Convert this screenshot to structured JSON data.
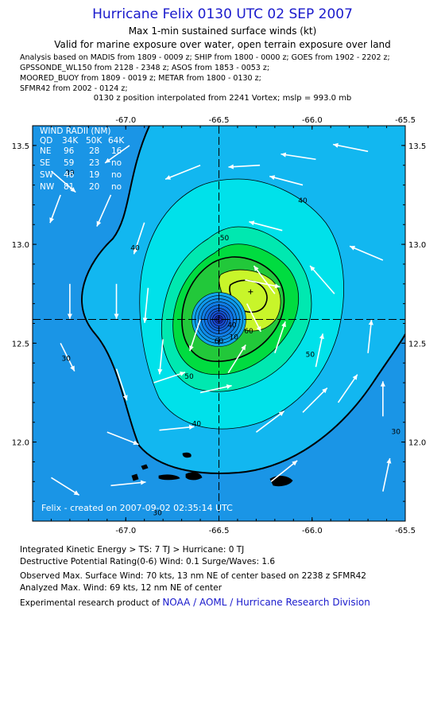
{
  "header": {
    "title": "Hurricane Felix 0130 UTC 02 SEP 2007",
    "subtitle": "Max 1-min sustained surface winds (kt)",
    "validity": "Valid for marine exposure over water, open terrain exposure over land",
    "analysis_lines": [
      "Analysis based on  MADIS from 1809 - 0009 z;  SHIP from 1800 - 0000 z;  GOES from 1902 - 2202 z;",
      "GPSSONDE_WL150 from 2128 - 2348 z;  ASOS from 1853 - 0053 z;",
      "MOORED_BUOY from 1809 - 0019 z;  METAR from 1800 - 0130 z;",
      "SFMR42 from 2002 - 0124 z;"
    ],
    "position_note": "0130 z position interpolated from 2241 Vortex; mslp = 993.0 mb"
  },
  "wind_radii": {
    "title": "WIND RADII (NM)",
    "header": [
      "QD",
      "34K",
      "50K",
      "64K"
    ],
    "rows": [
      [
        "NE",
        "96",
        "28",
        "16"
      ],
      [
        "SE",
        "59",
        "23",
        "no"
      ],
      [
        "SW",
        "46",
        "19",
        "no"
      ],
      [
        "NW",
        "81",
        "20",
        "no"
      ]
    ]
  },
  "credit": "Felix - created on 2007-09-02 02:35:14 UTC",
  "footer": {
    "ike": "Integrated Kinetic Energy > TS: 7 TJ   > Hurricane: 0 TJ",
    "dpr": "Destructive Potential Rating(0-6)   Wind: 0.1 Surge/Waves: 1.6",
    "observed": "Observed Max. Surface Wind: 70 kts, 13 nm NE of center based on 2238 z SFMR42",
    "analyzed": "Analyzed Max. Wind: 69 kts, 12 nm NE of center",
    "product_prefix": "Experimental research product of",
    "product_link": "NOAA / AOML / Hurricane Research Division"
  },
  "chart_data": {
    "type": "heatmap",
    "title": "Hurricane Felix 0130 UTC 02 SEP 2007",
    "xlim": [
      -67.5,
      -65.5
    ],
    "ylim": [
      11.6,
      13.6
    ],
    "x_ticks": [
      -67.0,
      -66.5,
      -66.0,
      -65.5
    ],
    "x_tick_labels": [
      "-67.0",
      "-66.5",
      "-66.0",
      "-65.5"
    ],
    "y_ticks": [
      12.0,
      12.5,
      13.0,
      13.5
    ],
    "y_tick_labels": [
      "12.0",
      "12.5",
      "13.0",
      "13.5"
    ],
    "center": {
      "lon": -66.5,
      "lat": 12.62
    },
    "max_wind_point": {
      "lon": -66.33,
      "lat": 12.76
    },
    "contour_levels": [
      10,
      20,
      30,
      40,
      50,
      60
    ],
    "contour_labels": [
      {
        "text": "30",
        "lon": -67.3,
        "lat": 13.35
      },
      {
        "text": "40",
        "lon": -66.95,
        "lat": 12.97
      },
      {
        "text": "40",
        "lon": -66.05,
        "lat": 13.21
      },
      {
        "text": "40",
        "lon": -66.62,
        "lat": 12.08
      },
      {
        "text": "30",
        "lon": -67.32,
        "lat": 12.41
      },
      {
        "text": "30",
        "lon": -66.83,
        "lat": 11.63
      },
      {
        "text": "30",
        "lon": -65.55,
        "lat": 12.04
      },
      {
        "text": "50",
        "lon": -66.47,
        "lat": 13.02
      },
      {
        "text": "50",
        "lon": -66.66,
        "lat": 12.32
      },
      {
        "text": "60",
        "lon": -66.5,
        "lat": 12.5
      },
      {
        "text": "60",
        "lon": -66.34,
        "lat": 12.55
      },
      {
        "text": "50",
        "lon": -66.01,
        "lat": 12.43
      },
      {
        "text": "10",
        "lon": -66.42,
        "lat": 12.52
      },
      {
        "text": "40",
        "lon": -66.43,
        "lat": 12.58
      }
    ],
    "colors": {
      "band_20": "#1a95e6",
      "band_30": "#12b7f0",
      "band_40": "#00e1ea",
      "band_50": "#00e8b0",
      "band_60": "#00dc40",
      "band_70": "#c8f52a",
      "eye": "#1530cc"
    },
    "wind_barbs": [
      {
        "lon": -67.4,
        "lat": 13.37,
        "u": 0.7,
        "v": -0.6
      },
      {
        "lon": -66.98,
        "lat": 13.5,
        "u": -0.7,
        "v": -0.5
      },
      {
        "lon": -66.6,
        "lat": 13.4,
        "u": -1.0,
        "v": -0.4
      },
      {
        "lon": -66.28,
        "lat": 13.4,
        "u": -0.9,
        "v": -0.05
      },
      {
        "lon": -65.98,
        "lat": 13.43,
        "u": -1.0,
        "v": 0.15
      },
      {
        "lon": -65.7,
        "lat": 13.47,
        "u": -1.0,
        "v": 0.2
      },
      {
        "lon": -67.35,
        "lat": 13.25,
        "u": -0.3,
        "v": -0.8
      },
      {
        "lon": -67.08,
        "lat": 13.25,
        "u": -0.4,
        "v": -0.9
      },
      {
        "lon": -66.9,
        "lat": 13.11,
        "u": -0.3,
        "v": -0.9
      },
      {
        "lon": -66.05,
        "lat": 13.3,
        "u": -0.95,
        "v": 0.25
      },
      {
        "lon": -66.16,
        "lat": 13.07,
        "u": -0.95,
        "v": 0.25
      },
      {
        "lon": -67.3,
        "lat": 12.8,
        "u": 0.0,
        "v": -1.0
      },
      {
        "lon": -67.05,
        "lat": 12.8,
        "u": 0.0,
        "v": -1.0
      },
      {
        "lon": -66.88,
        "lat": 12.78,
        "u": -0.1,
        "v": -1.0
      },
      {
        "lon": -66.6,
        "lat": 12.62,
        "u": -0.3,
        "v": -0.9
      },
      {
        "lon": -66.36,
        "lat": 12.82,
        "u": 1.0,
        "v": -0.2
      },
      {
        "lon": -66.35,
        "lat": 12.7,
        "u": 0.4,
        "v": -0.8
      },
      {
        "lon": -66.2,
        "lat": 12.75,
        "u": -0.6,
        "v": 0.8
      },
      {
        "lon": -65.88,
        "lat": 12.75,
        "u": -0.7,
        "v": 0.8
      },
      {
        "lon": -65.62,
        "lat": 12.92,
        "u": -0.95,
        "v": 0.4
      },
      {
        "lon": -67.35,
        "lat": 12.5,
        "u": 0.4,
        "v": -0.8
      },
      {
        "lon": -67.05,
        "lat": 12.37,
        "u": 0.3,
        "v": -0.9
      },
      {
        "lon": -66.8,
        "lat": 12.52,
        "u": -0.1,
        "v": -1.0
      },
      {
        "lon": -66.45,
        "lat": 12.35,
        "u": 0.5,
        "v": 0.8
      },
      {
        "lon": -66.2,
        "lat": 12.45,
        "u": 0.3,
        "v": 0.9
      },
      {
        "lon": -65.98,
        "lat": 12.38,
        "u": 0.2,
        "v": 0.95
      },
      {
        "lon": -65.7,
        "lat": 12.45,
        "u": 0.1,
        "v": 0.95
      },
      {
        "lon": -66.85,
        "lat": 12.3,
        "u": 0.9,
        "v": 0.3
      },
      {
        "lon": -66.6,
        "lat": 12.25,
        "u": 0.9,
        "v": 0.2
      },
      {
        "lon": -67.1,
        "lat": 12.05,
        "u": 0.9,
        "v": -0.35
      },
      {
        "lon": -66.82,
        "lat": 12.06,
        "u": 1.0,
        "v": 0.1
      },
      {
        "lon": -66.3,
        "lat": 12.05,
        "u": 0.8,
        "v": 0.6
      },
      {
        "lon": -66.05,
        "lat": 12.15,
        "u": 0.7,
        "v": 0.7
      },
      {
        "lon": -65.86,
        "lat": 12.2,
        "u": 0.55,
        "v": 0.8
      },
      {
        "lon": -65.62,
        "lat": 12.13,
        "u": 0.0,
        "v": 1.0
      },
      {
        "lon": -67.4,
        "lat": 11.82,
        "u": 0.8,
        "v": -0.5
      },
      {
        "lon": -67.08,
        "lat": 11.78,
        "u": 1.0,
        "v": 0.1
      },
      {
        "lon": -66.22,
        "lat": 11.8,
        "u": 0.75,
        "v": 0.6
      },
      {
        "lon": -65.62,
        "lat": 11.75,
        "u": 0.2,
        "v": 0.95
      }
    ]
  }
}
